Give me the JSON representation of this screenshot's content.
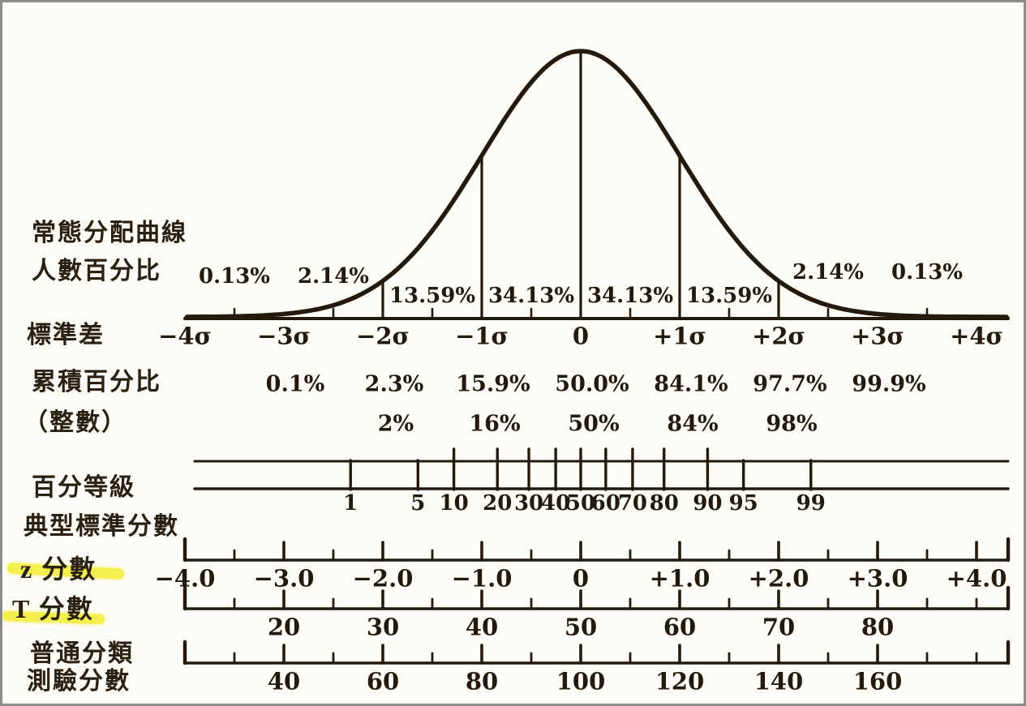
{
  "page": {
    "ink_color": "#231a0d",
    "paper_color": "#fdfcf6",
    "border_color": "#8c8c8c",
    "highlight_color": "#f2ee3c"
  },
  "left_labels": {
    "curve_line1": "常態分配曲線",
    "curve_line2": "人數百分比",
    "std_dev": "標準差",
    "cumulative": "累積百分比",
    "rounded": "（整數）",
    "percentile": "百分等級",
    "typical_standard": "典型標準分數",
    "z_score": "z 分數",
    "t_score": "T 分數",
    "classification_line1": "普通分類",
    "classification_line2": "測驗分數"
  },
  "chart_data": {
    "type": "line",
    "description": "Normal distribution curve with equivalent standard-score scales",
    "grid": false,
    "legend": false,
    "curve": {
      "distribution": "normal",
      "mean_sigma": 0,
      "sd_sigma": 1,
      "divider_sigmas": [
        -2,
        -1,
        0,
        1,
        2
      ]
    },
    "sigma_axis": {
      "tick_labels": [
        "−4σ",
        "−3σ",
        "−2σ",
        "−1σ",
        "0",
        "+1σ",
        "+2σ",
        "+3σ",
        "+4σ"
      ],
      "tick_sigmas": [
        -4,
        -3,
        -2,
        -1,
        0,
        1,
        2,
        3,
        4
      ],
      "minor_tick_sigmas": [
        -3.5,
        -2.5,
        -1.5,
        -0.5,
        0.5,
        1.5,
        2.5,
        3.5
      ],
      "range": [
        -4,
        4
      ]
    },
    "region_percentages": {
      "labels": [
        "0.13%",
        "2.14%",
        "13.59%",
        "34.13%",
        "34.13%",
        "13.59%",
        "2.14%",
        "0.13%"
      ],
      "values_percent": [
        0.13,
        2.14,
        13.59,
        34.13,
        34.13,
        13.59,
        2.14,
        0.13
      ],
      "center_sigmas": [
        -3.5,
        -2.5,
        -1.5,
        -0.5,
        0.5,
        1.5,
        2.5,
        3.5
      ]
    },
    "cumulative_percentages": {
      "labels": [
        "0.1%",
        "2.3%",
        "15.9%",
        "50.0%",
        "84.1%",
        "97.7%",
        "99.9%"
      ],
      "at_sigmas": [
        -3,
        -2,
        -1,
        0,
        1,
        2,
        3
      ]
    },
    "cumulative_rounded": {
      "labels": [
        "2%",
        "16%",
        "50%",
        "84%",
        "98%"
      ],
      "at_sigmas": [
        -2,
        -1,
        0,
        1,
        2
      ]
    },
    "percentile_scale": {
      "labels": [
        "1",
        "5",
        "10",
        "20",
        "30",
        "40",
        "50",
        "60",
        "70",
        "80",
        "90",
        "95",
        "99"
      ],
      "values": [
        1,
        5,
        10,
        20,
        30,
        40,
        50,
        60,
        70,
        80,
        90,
        95,
        99
      ],
      "z_positions": [
        -2.326,
        -1.645,
        -1.282,
        -0.842,
        -0.524,
        -0.253,
        0,
        0.253,
        0.524,
        0.842,
        1.282,
        1.645,
        2.326
      ],
      "tall_tick": [
        false,
        false,
        true,
        true,
        true,
        true,
        true,
        true,
        true,
        true,
        true,
        false,
        false
      ]
    },
    "z_scale": {
      "labels": [
        "−4.0",
        "−3.0",
        "−2.0",
        "−1.0",
        "0",
        "+1.0",
        "+2.0",
        "+3.0",
        "+4.0"
      ],
      "at_sigmas": [
        -4,
        -3,
        -2,
        -1,
        0,
        1,
        2,
        3,
        4
      ],
      "minor_step_sigma": 0.5
    },
    "t_scale": {
      "labels": [
        "20",
        "30",
        "40",
        "50",
        "60",
        "70",
        "80"
      ],
      "at_sigmas": [
        -3,
        -2,
        -1,
        0,
        1,
        2,
        3
      ],
      "minor_step_sigma": 0.5
    },
    "general_classification_scale": {
      "labels": [
        "40",
        "60",
        "80",
        "100",
        "120",
        "140",
        "160"
      ],
      "at_sigmas": [
        -3,
        -2,
        -1,
        0,
        1,
        2,
        3
      ],
      "minor_step_sigma": 0.5
    }
  }
}
